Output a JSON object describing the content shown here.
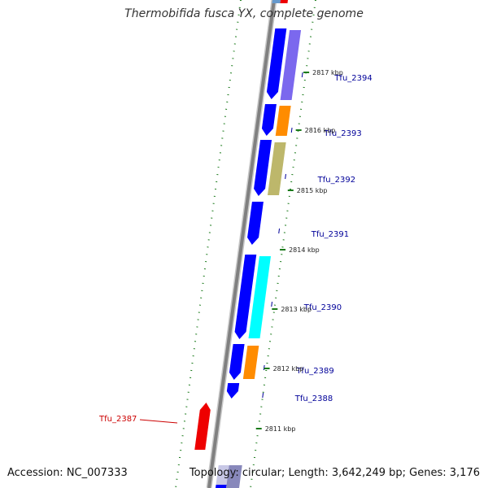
{
  "title": "Thermobifida fusca YX, complete genome",
  "accession_text": "Accession: NC_007333",
  "topology_text": "Topology: circular; Length: 3,642,249 bp; Genes: 3,176",
  "colors": {
    "forward_cds": "#0000ff",
    "reverse_cds": "#ee0000",
    "backbone": "#808080",
    "ruler_ticks": "#1a7a1a",
    "label_forward": "#000099",
    "label_reverse": "#cc0000",
    "cog_orange": "#ff8c00",
    "cog_purple": "#7b68ee",
    "cog_olive": "#bdb76b",
    "cog_cyan": "#00ffff"
  },
  "scale_labels": [
    {
      "text": "2817 kbp",
      "kbp": 2817
    },
    {
      "text": "2816 kbp",
      "kbp": 2816
    },
    {
      "text": "2815 kbp",
      "kbp": 2815
    },
    {
      "text": "2814 kbp",
      "kbp": 2814
    },
    {
      "text": "2813 kbp",
      "kbp": 2813
    },
    {
      "text": "2812 kbp",
      "kbp": 2812
    },
    {
      "text": "2811 kbp",
      "kbp": 2811
    }
  ],
  "genes": [
    {
      "label": "Tfu_2394",
      "strand": "forward",
      "cog": "cog_purple"
    },
    {
      "label": "Tfu_2393",
      "strand": "forward",
      "cog": "cog_orange"
    },
    {
      "label": "Tfu_2392",
      "strand": "forward",
      "cog": "cog_olive"
    },
    {
      "label": "Tfu_2391",
      "strand": "forward",
      "cog": ""
    },
    {
      "label": "Tfu_2390",
      "strand": "forward",
      "cog": "cog_cyan"
    },
    {
      "label": "Tfu_2389",
      "strand": "forward",
      "cog": "cog_orange"
    },
    {
      "label": "Tfu_2388",
      "strand": "forward",
      "cog": ""
    },
    {
      "label": "Tfu_2387",
      "strand": "reverse",
      "cog": ""
    }
  ]
}
